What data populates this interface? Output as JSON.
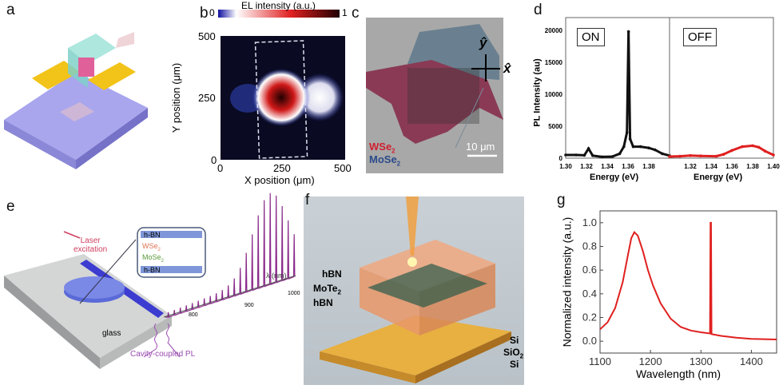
{
  "panels": {
    "a": "a",
    "b": "b",
    "c": "c",
    "d": "d",
    "e": "e",
    "f": "f",
    "g": "g"
  },
  "panel_b": {
    "colorbar_title": "EL intensity (a.u.)",
    "cb_min": "0",
    "cb_max": "1",
    "xlabel": "X position (μm)",
    "ylabel": "Y position (μm)",
    "xticks": [
      "0",
      "250",
      "500"
    ],
    "yticks": [
      "0",
      "250",
      "500"
    ]
  },
  "panel_c": {
    "label_wse2": "WSe",
    "label_mose2": "MoSe",
    "sub": "2",
    "scalebar": "10 μm",
    "axis_y": "ŷ",
    "axis_x": "x̂"
  },
  "panel_e": {
    "laser": "Laser",
    "excitation": "excitation",
    "hbn_top": "h-BN",
    "wse2": "WSe",
    "mose2": "MoSe",
    "sub": "2",
    "hbn_bottom": "h-BN",
    "glass": "glass",
    "pl": "Cavity-coupled PL",
    "lambda": "λ (nm)",
    "t800": "800",
    "t900": "900",
    "t1000": "1000"
  },
  "panel_f": {
    "hbn1": "hBN",
    "mote2": "MoTe",
    "sub": "2",
    "hbn2": "hBN",
    "si1": "Si",
    "sio2": "SiO",
    "si2": "Si"
  },
  "chart_data": [
    {
      "type": "line",
      "id": "d",
      "ylabel": "PL Intensity (au)",
      "xlabel": "Energy (eV)",
      "ylim": [
        0,
        22000
      ],
      "yticks": [
        "0",
        "5000",
        "10000",
        "15000",
        "20000"
      ],
      "panels": [
        {
          "name": "ON",
          "color": "#111111",
          "xlim": [
            1.3,
            1.4
          ],
          "xticks": [
            "1.30",
            "1.32",
            "1.34",
            "1.36",
            "1.38"
          ],
          "x": [
            1.3,
            1.31,
            1.318,
            1.322,
            1.326,
            1.335,
            1.345,
            1.352,
            1.356,
            1.359,
            1.3605,
            1.362,
            1.365,
            1.372,
            1.38,
            1.386,
            1.393,
            1.4
          ],
          "y": [
            500,
            500,
            450,
            1500,
            400,
            200,
            250,
            700,
            1800,
            4000,
            19800,
            3000,
            1800,
            1800,
            1600,
            1300,
            700,
            400
          ]
        },
        {
          "name": "OFF",
          "color": "#e02020",
          "xlim": [
            1.3,
            1.4
          ],
          "xticks": [
            "1.32",
            "1.34",
            "1.36",
            "1.38",
            "1.40"
          ],
          "x": [
            1.3,
            1.31,
            1.32,
            1.33,
            1.345,
            1.352,
            1.36,
            1.37,
            1.38,
            1.386,
            1.392,
            1.4
          ],
          "y": [
            250,
            300,
            400,
            350,
            300,
            600,
            1200,
            1800,
            1950,
            1700,
            1100,
            500
          ]
        }
      ]
    },
    {
      "type": "line",
      "id": "g",
      "xlabel": "Wavelength (nm)",
      "ylabel": "Normalized intensity (a.u.)",
      "xlim": [
        1100,
        1450
      ],
      "ylim": [
        -0.1,
        1.1
      ],
      "xticks": [
        "1100",
        "1200",
        "1300",
        "1400"
      ],
      "yticks": [
        "0.0",
        "0.2",
        "0.4",
        "0.6",
        "0.8",
        "1.0"
      ],
      "color": "#e02020",
      "x": [
        1100,
        1115,
        1130,
        1145,
        1155,
        1162,
        1168,
        1175,
        1185,
        1195,
        1205,
        1220,
        1240,
        1260,
        1280,
        1300,
        1318,
        1319,
        1320,
        1321,
        1340,
        1370,
        1400,
        1450
      ],
      "y": [
        0.1,
        0.16,
        0.28,
        0.5,
        0.72,
        0.87,
        0.92,
        0.89,
        0.76,
        0.6,
        0.47,
        0.32,
        0.19,
        0.12,
        0.09,
        0.075,
        0.065,
        1.0,
        1.0,
        0.06,
        0.045,
        0.03,
        0.02,
        0.015
      ]
    }
  ],
  "colors": {
    "red": "#e02020",
    "blue": "#3b3bd0",
    "purple": "#8a3aa0"
  }
}
